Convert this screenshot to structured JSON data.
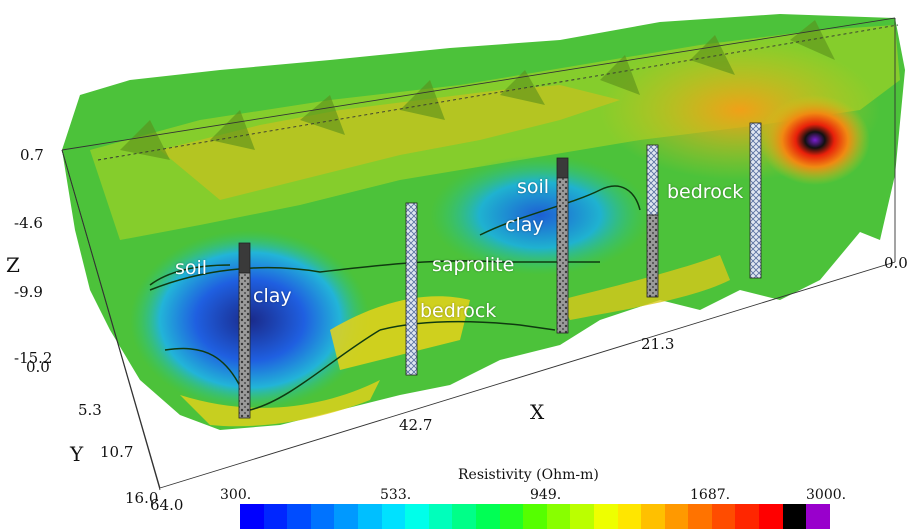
{
  "axes": {
    "z_label": "Z",
    "x_label": "X",
    "y_label": "Y",
    "z_ticks": [
      "0.7",
      "-4.6",
      "-9.9",
      "-15.2"
    ],
    "x_ticks": [
      "64.0",
      "42.7",
      "21.3",
      "0.0"
    ],
    "y_ticks": [
      "0.0",
      "5.3",
      "10.7",
      "16.0"
    ]
  },
  "annotations": {
    "soil_left": "soil",
    "clay_left": "clay",
    "saprolite": "saprolite",
    "bedrock_mid": "bedrock",
    "soil_right": "soil",
    "clay_right": "clay",
    "bedrock_right": "bedrock"
  },
  "colorbar": {
    "title": "Resistivity (Ohm-m)",
    "ticks": [
      "300.",
      "533.",
      "949.",
      "1687.",
      "3000."
    ],
    "colors": [
      "#0000ff",
      "#0026ff",
      "#004cff",
      "#0073ff",
      "#0099ff",
      "#00bfff",
      "#00e1ff",
      "#00ffea",
      "#00ffbb",
      "#00ff88",
      "#00ff55",
      "#22ff22",
      "#55ff00",
      "#88ff00",
      "#bbff00",
      "#eeff00",
      "#ffe600",
      "#ffc000",
      "#ff9900",
      "#ff7300",
      "#ff4c00",
      "#ff2600",
      "#ff0000",
      "#000000",
      "#9900cc"
    ]
  },
  "colors": {
    "low": "#1f3fd8",
    "medium": "#3fbf3f",
    "high": "#f2e21a",
    "very_high": "#ff3300"
  }
}
